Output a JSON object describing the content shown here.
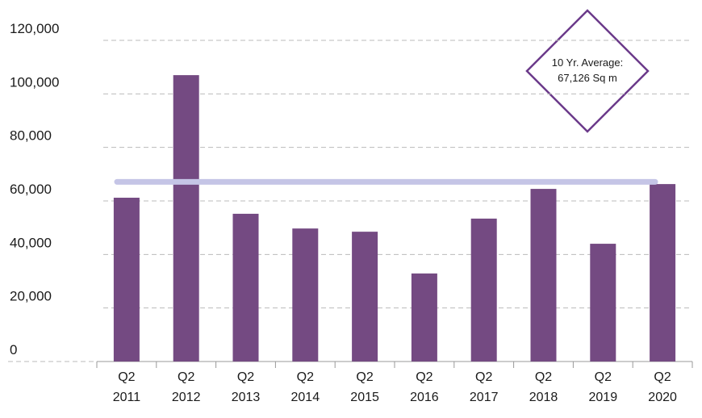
{
  "chart_data": {
    "type": "bar",
    "categories": [
      [
        "Q2",
        "2011"
      ],
      [
        "Q2",
        "2012"
      ],
      [
        "Q2",
        "2013"
      ],
      [
        "Q2",
        "2014"
      ],
      [
        "Q2",
        "2015"
      ],
      [
        "Q2",
        "2016"
      ],
      [
        "Q2",
        "2017"
      ],
      [
        "Q2",
        "2018"
      ],
      [
        "Q2",
        "2019"
      ],
      [
        "Q2",
        "2020"
      ]
    ],
    "values": [
      61200,
      107000,
      55200,
      49700,
      48500,
      32900,
      53400,
      64500,
      44000,
      66300
    ],
    "color": "#744a82",
    "ylim": [
      0,
      120000
    ],
    "yticks": [
      0,
      {
        "value": 20000,
        "label": "20,000"
      },
      {
        "value": 40000,
        "label": "40,000"
      },
      {
        "value": 60000,
        "label": "60,000"
      },
      {
        "value": 80000,
        "label": "80,000"
      },
      {
        "value": 100000,
        "label": "100,000"
      },
      {
        "value": 120000,
        "label": "120,000"
      }
    ],
    "grid": true,
    "average": {
      "value": 67126,
      "label": "67,126 Sq m",
      "title": "10 Yr. Average:",
      "color": "#c5c5e6"
    }
  }
}
